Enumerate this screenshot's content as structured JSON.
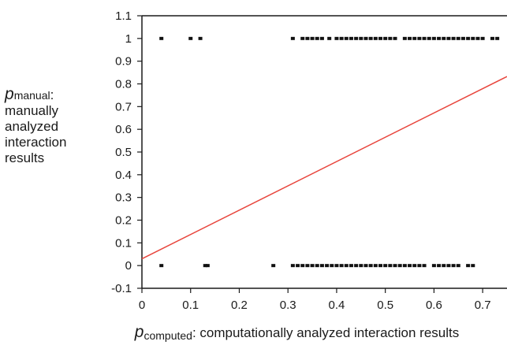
{
  "chart_data": {
    "type": "scatter",
    "title": "",
    "x_axis": {
      "symbol": "p",
      "subscript": "computed",
      "suffix": ": computationally analyzed interaction results",
      "ticks": [
        "0",
        "0.1",
        "0.2",
        "0.3",
        "0.4",
        "0.5",
        "0.6",
        "0.7"
      ],
      "range": [
        0,
        0.75
      ]
    },
    "y_axis": {
      "symbol": "p",
      "subscript": "manual",
      "suffix": ":",
      "lines": [
        "manually",
        "analyzed",
        "interaction",
        "results"
      ],
      "ticks": [
        "-0.1",
        "0",
        "0.1",
        "0.2",
        "0.3",
        "0.4",
        "0.5",
        "0.6",
        "0.7",
        "0.8",
        "0.9",
        "1",
        "1.1"
      ],
      "range": [
        -0.1,
        1.1
      ]
    },
    "grid": false,
    "points_at_1": [
      0.04,
      0.1,
      0.12,
      0.31,
      0.33,
      0.34,
      0.35,
      0.36,
      0.37,
      0.385,
      0.4,
      0.41,
      0.42,
      0.43,
      0.44,
      0.45,
      0.46,
      0.47,
      0.48,
      0.49,
      0.5,
      0.51,
      0.52,
      0.54,
      0.55,
      0.56,
      0.57,
      0.58,
      0.59,
      0.6,
      0.61,
      0.62,
      0.63,
      0.64,
      0.65,
      0.66,
      0.67,
      0.68,
      0.69,
      0.7,
      0.72,
      0.73
    ],
    "points_at_0": [
      0.04,
      0.13,
      0.135,
      0.27,
      0.31,
      0.32,
      0.33,
      0.34,
      0.35,
      0.36,
      0.37,
      0.38,
      0.39,
      0.4,
      0.41,
      0.42,
      0.43,
      0.44,
      0.45,
      0.46,
      0.47,
      0.48,
      0.49,
      0.5,
      0.51,
      0.52,
      0.53,
      0.54,
      0.55,
      0.56,
      0.57,
      0.58,
      0.6,
      0.61,
      0.62,
      0.63,
      0.64,
      0.65,
      0.67,
      0.68
    ],
    "fit_line": {
      "intercept": 0.03,
      "slope": 1.07,
      "color": "#e8453c"
    },
    "point_color": "#111111"
  }
}
